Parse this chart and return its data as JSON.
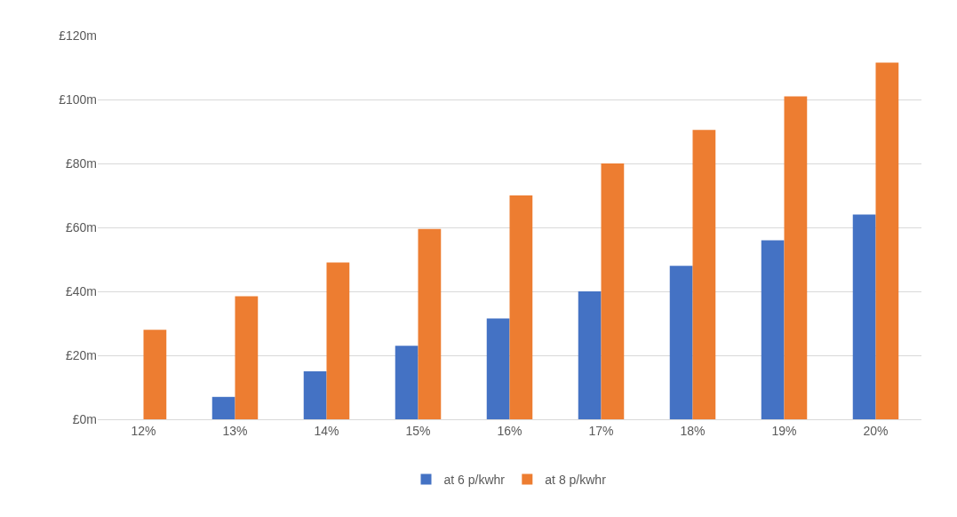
{
  "chart_data": {
    "type": "bar",
    "categories": [
      "12%",
      "13%",
      "14%",
      "15%",
      "16%",
      "17%",
      "18%",
      "19%",
      "20%"
    ],
    "series": [
      {
        "name": "at 6 p/kwhr",
        "color": "#4472c4",
        "values": [
          0,
          7,
          15,
          23,
          31.5,
          40,
          48,
          56,
          64
        ]
      },
      {
        "name": "at 8 p/kwhr",
        "color": "#ed7d31",
        "values": [
          28,
          38.5,
          49,
          59.5,
          70,
          80,
          90.5,
          101,
          111.5
        ]
      }
    ],
    "ylim": [
      0,
      120
    ],
    "yticks": [
      {
        "value": 0,
        "label": "£0m"
      },
      {
        "value": 20,
        "label": "£20m"
      },
      {
        "value": 40,
        "label": "£40m"
      },
      {
        "value": 60,
        "label": "£60m"
      },
      {
        "value": 80,
        "label": "£80m"
      },
      {
        "value": 100,
        "label": "£100m"
      },
      {
        "value": 120,
        "label": "£120m"
      }
    ],
    "grid": "y",
    "legend": "bottom"
  }
}
